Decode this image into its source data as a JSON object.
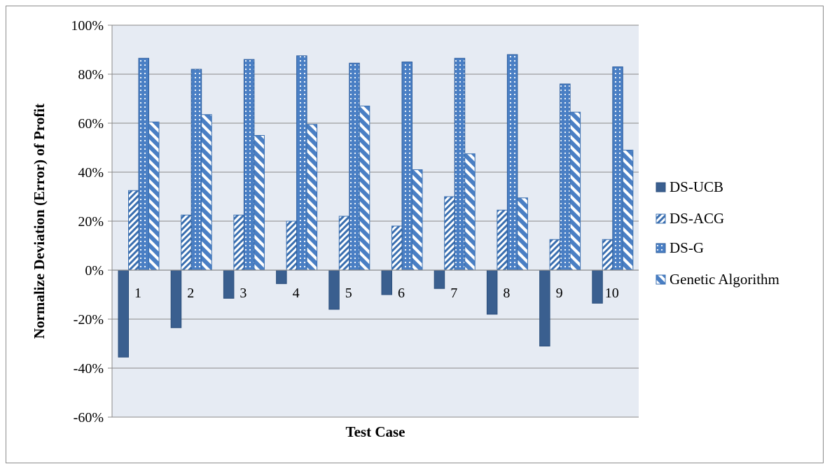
{
  "chart_data": {
    "type": "bar",
    "xlabel": "Test Case",
    "ylabel": "Normalize Deviation (Error) of Profit",
    "ylim": [
      -60,
      100
    ],
    "yticks": [
      "100%",
      "80%",
      "60%",
      "40%",
      "20%",
      "0%",
      "-20%",
      "-40%",
      "-60%"
    ],
    "ytick_values": [
      100,
      80,
      60,
      40,
      20,
      0,
      -20,
      -40,
      -60
    ],
    "grid": true,
    "legend_position": "right",
    "categories": [
      "1",
      "2",
      "3",
      "4",
      "5",
      "6",
      "7",
      "8",
      "9",
      "10"
    ],
    "series": [
      {
        "name": "DS-UCB",
        "pattern": "solid",
        "color": "#3a5f8f",
        "values": [
          -35.5,
          -23.5,
          -11.5,
          -5.5,
          -16,
          -10,
          -7.5,
          -18,
          -31,
          -13.5
        ]
      },
      {
        "name": "DS-ACG",
        "pattern": "diagonal-hatch",
        "color": "#3a6fb0",
        "values": [
          32.5,
          22.5,
          22.5,
          20,
          22,
          18,
          30,
          24.5,
          12.5,
          12.5
        ]
      },
      {
        "name": "DS-G",
        "pattern": "dotted",
        "color": "#4a7fc4",
        "values": [
          86.5,
          82,
          86,
          87.5,
          84.5,
          85,
          86.5,
          88,
          76,
          83
        ]
      },
      {
        "name": "Genetic Algorithm",
        "pattern": "wide-diagonal",
        "color": "#4a7fc4",
        "values": [
          60.5,
          63.5,
          55,
          59.5,
          67,
          41,
          47.5,
          29.5,
          64.5,
          49
        ]
      }
    ]
  }
}
